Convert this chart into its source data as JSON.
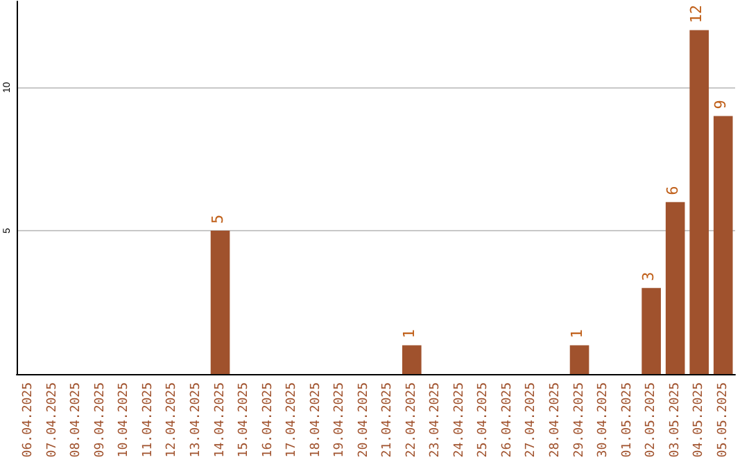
{
  "chart_data": {
    "type": "bar",
    "categories": [
      "06.04.2025",
      "07.04.2025",
      "08.04.2025",
      "09.04.2025",
      "10.04.2025",
      "11.04.2025",
      "12.04.2025",
      "13.04.2025",
      "14.04.2025",
      "15.04.2025",
      "16.04.2025",
      "17.04.2025",
      "18.04.2025",
      "19.04.2025",
      "20.04.2025",
      "21.04.2025",
      "22.04.2025",
      "23.04.2025",
      "24.04.2025",
      "25.04.2025",
      "26.04.2025",
      "27.04.2025",
      "28.04.2025",
      "29.04.2025",
      "30.04.2025",
      "01.05.2025",
      "02.05.2025",
      "03.05.2025",
      "04.05.2025",
      "05.05.2025"
    ],
    "values": [
      0,
      0,
      0,
      0,
      0,
      0,
      0,
      0,
      5,
      0,
      0,
      0,
      0,
      0,
      0,
      0,
      1,
      0,
      0,
      0,
      0,
      0,
      0,
      1,
      0,
      0,
      3,
      6,
      12,
      9
    ],
    "value_labels": [
      null,
      null,
      null,
      null,
      null,
      null,
      null,
      null,
      "5",
      null,
      null,
      null,
      null,
      null,
      null,
      null,
      "1",
      null,
      null,
      null,
      null,
      null,
      null,
      "1",
      null,
      null,
      "3",
      "6",
      "12",
      "9"
    ],
    "color": "#a0522d",
    "ylim": [
      0,
      13
    ],
    "yticks": [
      5,
      10
    ],
    "grid": "y"
  }
}
